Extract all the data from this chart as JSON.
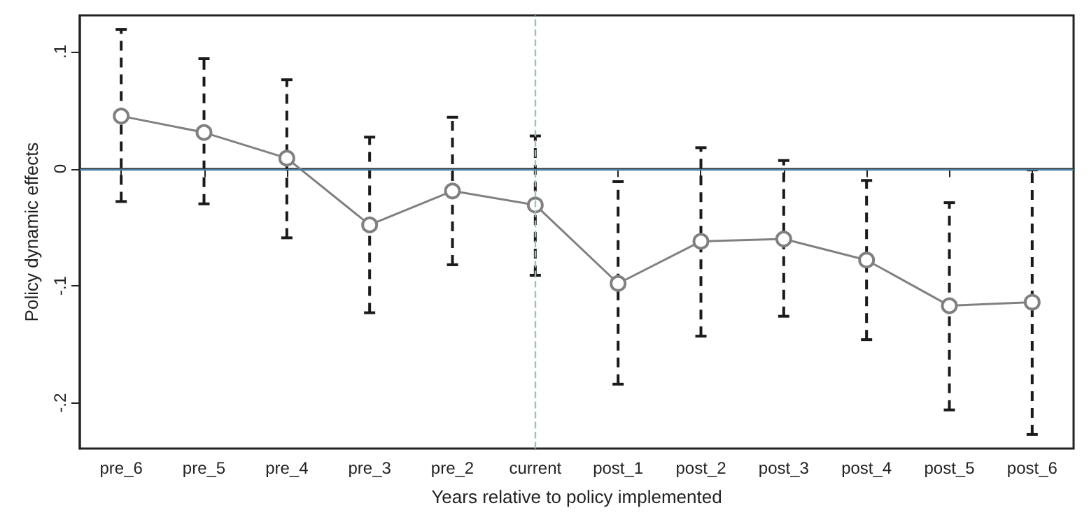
{
  "chart_data": {
    "type": "line",
    "xlabel": "Years relative to policy implemented",
    "ylabel": "Policy dynamic effects",
    "categories": [
      "pre_6",
      "pre_5",
      "pre_4",
      "pre_3",
      "pre_2",
      "current",
      "post_1",
      "post_2",
      "post_3",
      "post_4",
      "post_5",
      "post_6"
    ],
    "series": [
      {
        "color": "#808080",
        "values": [
          0.045,
          0.031,
          0.009,
          -0.048,
          -0.019,
          -0.031,
          -0.098,
          -0.062,
          -0.06,
          -0.078,
          -0.117,
          -0.114
        ],
        "errors": [
          [
            -0.028,
            0.119
          ],
          [
            -0.03,
            0.094
          ],
          [
            -0.059,
            0.076
          ],
          [
            -0.123,
            0.027
          ],
          [
            -0.082,
            0.044
          ],
          [
            -0.091,
            0.028
          ],
          [
            -0.184,
            -0.011
          ],
          [
            -0.143,
            0.018
          ],
          [
            -0.126,
            0.007
          ],
          [
            -0.146,
            -0.01
          ],
          [
            -0.206,
            -0.029
          ],
          [
            -0.227,
            -0.001
          ]
        ]
      }
    ],
    "ylim": [
      -0.239,
      0.131
    ],
    "yticks": [
      {
        "value": -0.2,
        "label": "-.2"
      },
      {
        "value": -0.1,
        "label": "-.1"
      },
      {
        "value": 0,
        "label": "0"
      },
      {
        "value": 0.1,
        "label": ".1"
      }
    ],
    "ref_lines": [
      {
        "axis": "y",
        "value": 0,
        "color": "#4f7f9f",
        "line_style": "solid"
      },
      {
        "axis": "x",
        "value": "current",
        "color": "#a8bcb8",
        "line_style": "dashed"
      }
    ],
    "marker": "circle",
    "line_style": "solid",
    "grid": false
  }
}
